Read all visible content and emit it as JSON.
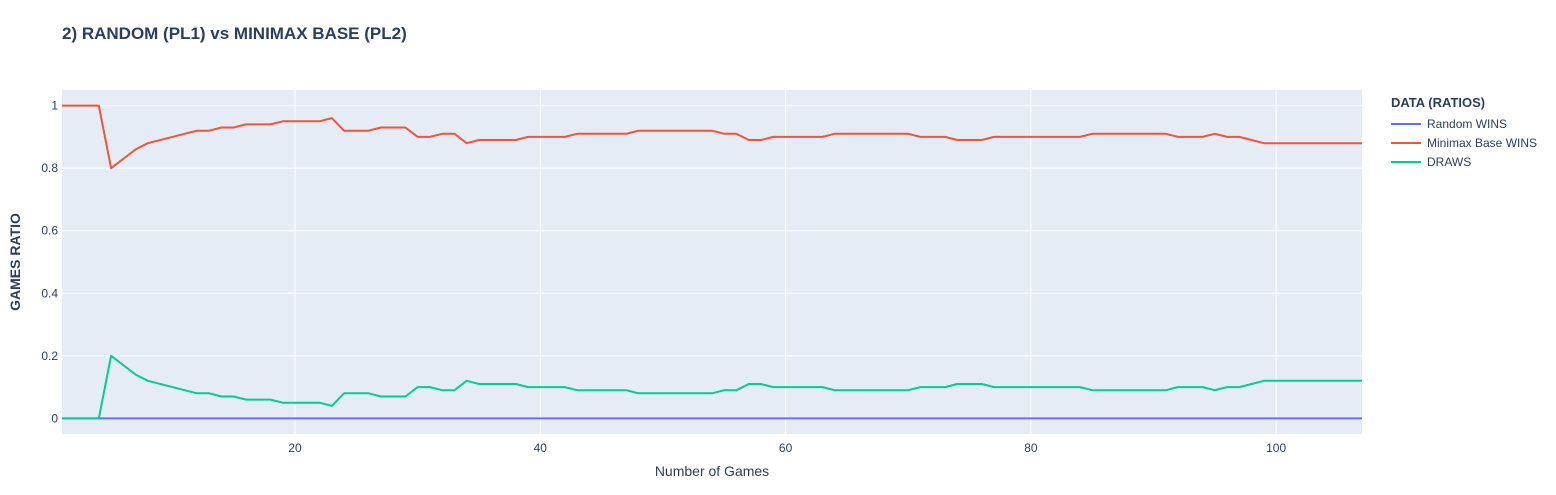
{
  "chart_data": {
    "type": "line",
    "title": "2) RANDOM (PL1) vs MINIMAX BASE (PL2)",
    "xlabel": "Number of Games",
    "ylabel": "GAMES RATIO",
    "xlim": [
      1,
      107
    ],
    "ylim": [
      -0.05,
      1.05
    ],
    "x_ticks": [
      20,
      40,
      60,
      80,
      100
    ],
    "y_ticks": [
      0,
      0.2,
      0.4,
      0.6,
      0.8,
      1
    ],
    "x_tick_labels": [
      "20",
      "40",
      "60",
      "80",
      "100"
    ],
    "y_tick_labels": [
      "0",
      "0.2",
      "0.4",
      "0.6",
      "0.8",
      "1"
    ],
    "legend_title": "DATA (RATIOS)",
    "legend_position": "top-right, outside",
    "grid": true,
    "series": [
      {
        "name": "Random WINS",
        "color": "#636efa",
        "x": [
          1,
          107
        ],
        "y": [
          0,
          0
        ]
      },
      {
        "name": "Minimax Base WINS",
        "color": "#ef553b",
        "x": [
          1,
          2,
          3,
          4,
          5,
          7,
          8,
          12,
          13,
          14,
          15,
          16,
          17,
          18,
          19,
          20,
          21,
          22,
          23,
          24,
          25,
          26,
          27,
          28,
          29,
          30,
          31,
          32,
          33,
          34,
          35,
          36,
          37,
          38,
          39,
          40,
          41,
          42,
          43,
          44,
          45,
          46,
          47,
          48,
          49,
          50,
          51,
          52,
          53,
          54,
          55,
          56,
          57,
          58,
          59,
          60,
          61,
          62,
          63,
          64,
          65,
          66,
          67,
          68,
          69,
          70,
          71,
          72,
          73,
          74,
          75,
          76,
          77,
          78,
          79,
          80,
          81,
          82,
          83,
          84,
          85,
          86,
          87,
          88,
          89,
          90,
          91,
          92,
          93,
          94,
          95,
          96,
          97,
          98,
          99,
          100,
          101,
          102,
          103,
          104,
          105,
          106,
          107
        ],
        "y": [
          1,
          1,
          1,
          1,
          0.8,
          0.86,
          0.88,
          0.92,
          0.92,
          0.93,
          0.93,
          0.94,
          0.94,
          0.94,
          0.95,
          0.95,
          0.95,
          0.95,
          0.96,
          0.92,
          0.92,
          0.92,
          0.93,
          0.93,
          0.93,
          0.9,
          0.9,
          0.91,
          0.91,
          0.88,
          0.89,
          0.89,
          0.89,
          0.89,
          0.9,
          0.9,
          0.9,
          0.9,
          0.91,
          0.91,
          0.91,
          0.91,
          0.91,
          0.92,
          0.92,
          0.92,
          0.92,
          0.92,
          0.92,
          0.92,
          0.91,
          0.91,
          0.89,
          0.89,
          0.9,
          0.9,
          0.9,
          0.9,
          0.9,
          0.91,
          0.91,
          0.91,
          0.91,
          0.91,
          0.91,
          0.91,
          0.9,
          0.9,
          0.9,
          0.89,
          0.89,
          0.89,
          0.9,
          0.9,
          0.9,
          0.9,
          0.9,
          0.9,
          0.9,
          0.9,
          0.91,
          0.91,
          0.91,
          0.91,
          0.91,
          0.91,
          0.91,
          0.9,
          0.9,
          0.9,
          0.91,
          0.9,
          0.9,
          0.89,
          0.88,
          0.88,
          0.88,
          0.88,
          0.88,
          0.88,
          0.88,
          0.88,
          0.88
        ]
      },
      {
        "name": "DRAWS",
        "color": "#00cc96",
        "x": [
          1,
          2,
          3,
          4,
          5,
          7,
          8,
          12,
          13,
          14,
          15,
          16,
          17,
          18,
          19,
          20,
          21,
          22,
          23,
          24,
          25,
          26,
          27,
          28,
          29,
          30,
          31,
          32,
          33,
          34,
          35,
          36,
          37,
          38,
          39,
          40,
          41,
          42,
          43,
          44,
          45,
          46,
          47,
          48,
          49,
          50,
          51,
          52,
          53,
          54,
          55,
          56,
          57,
          58,
          59,
          60,
          61,
          62,
          63,
          64,
          65,
          66,
          67,
          68,
          69,
          70,
          71,
          72,
          73,
          74,
          75,
          76,
          77,
          78,
          79,
          80,
          81,
          82,
          83,
          84,
          85,
          86,
          87,
          88,
          89,
          90,
          91,
          92,
          93,
          94,
          95,
          96,
          97,
          98,
          99,
          100,
          101,
          102,
          103,
          104,
          105,
          106,
          107
        ],
        "y": [
          0,
          0,
          0,
          0,
          0.2,
          0.14,
          0.12,
          0.08,
          0.08,
          0.07,
          0.07,
          0.06,
          0.06,
          0.06,
          0.05,
          0.05,
          0.05,
          0.05,
          0.04,
          0.08,
          0.08,
          0.08,
          0.07,
          0.07,
          0.07,
          0.1,
          0.1,
          0.09,
          0.09,
          0.12,
          0.11,
          0.11,
          0.11,
          0.11,
          0.1,
          0.1,
          0.1,
          0.1,
          0.09,
          0.09,
          0.09,
          0.09,
          0.09,
          0.08,
          0.08,
          0.08,
          0.08,
          0.08,
          0.08,
          0.08,
          0.09,
          0.09,
          0.11,
          0.11,
          0.1,
          0.1,
          0.1,
          0.1,
          0.1,
          0.09,
          0.09,
          0.09,
          0.09,
          0.09,
          0.09,
          0.09,
          0.1,
          0.1,
          0.1,
          0.11,
          0.11,
          0.11,
          0.1,
          0.1,
          0.1,
          0.1,
          0.1,
          0.1,
          0.1,
          0.1,
          0.09,
          0.09,
          0.09,
          0.09,
          0.09,
          0.09,
          0.09,
          0.1,
          0.1,
          0.1,
          0.09,
          0.1,
          0.1,
          0.11,
          0.12,
          0.12,
          0.12,
          0.12,
          0.12,
          0.12,
          0.12,
          0.12,
          0.12
        ]
      }
    ]
  }
}
